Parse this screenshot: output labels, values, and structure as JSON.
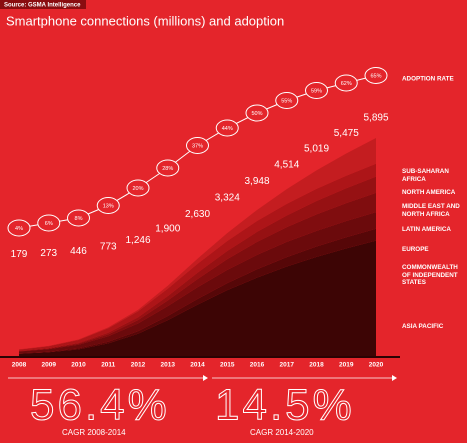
{
  "source": "Source: GSMA Intelligence",
  "chart_data": {
    "type": "stacked-area",
    "title": "Smartphone connections (millions) and adoption",
    "categories": [
      "2008",
      "2009",
      "2010",
      "2011",
      "2012",
      "2013",
      "2014",
      "2015",
      "2016",
      "2017",
      "2018",
      "2019",
      "2020"
    ],
    "totals": {
      "values": [
        179,
        273,
        446,
        773,
        1246,
        1900,
        2630,
        3324,
        3948,
        4514,
        5019,
        5475,
        5895
      ],
      "value_labels": [
        "179",
        "273",
        "446",
        "773",
        "1,246",
        "1,900",
        "2,630",
        "3,324",
        "3,948",
        "4,514",
        "5,019",
        "5,475",
        "5,895"
      ]
    },
    "adoption": {
      "name": "ADOPTION RATE",
      "values": [
        4,
        6,
        8,
        13,
        20,
        28,
        37,
        44,
        50,
        55,
        59,
        62,
        65
      ],
      "value_labels": [
        "4%",
        "6%",
        "8%",
        "13%",
        "20%",
        "28%",
        "37%",
        "44%",
        "50%",
        "55%",
        "59%",
        "62%",
        "65%"
      ]
    },
    "series": [
      {
        "name": "SUB-SAHARAN AFRICA",
        "color": "#c41d20",
        "values": [
          5,
          10,
          14,
          23,
          40,
          80,
          140,
          214,
          298,
          399,
          499,
          600,
          695
        ]
      },
      {
        "name": "NORTH AMERICA",
        "color": "#ad1518",
        "values": [
          35,
          50,
          80,
          120,
          160,
          200,
          240,
          270,
          295,
          315,
          330,
          340,
          350
        ]
      },
      {
        "name": "MIDDLE EAST AND NORTH AFRICA",
        "color": "#961113",
        "values": [
          9,
          13,
          22,
          45,
          76,
          120,
          170,
          220,
          270,
          315,
          360,
          400,
          440
        ]
      },
      {
        "name": "LATIN AMERICA",
        "color": "#800d0f",
        "values": [
          10,
          15,
          25,
          50,
          90,
          150,
          220,
          290,
          350,
          400,
          445,
          485,
          520
        ]
      },
      {
        "name": "EUROPE",
        "color": "#6b0a0c",
        "values": [
          50,
          70,
          100,
          150,
          210,
          270,
          320,
          360,
          390,
          410,
          425,
          440,
          450
        ]
      },
      {
        "name": "COMMONWEALTH OF INDEPENDENT STATES",
        "color": "#560708",
        "values": [
          10,
          15,
          25,
          45,
          70,
          110,
          150,
          190,
          225,
          255,
          280,
          300,
          320
        ]
      },
      {
        "name": "ASIA PACIFIC",
        "color": "#3d0505",
        "values": [
          60,
          100,
          180,
          340,
          600,
          970,
          1390,
          1780,
          2120,
          2420,
          2680,
          2910,
          3120
        ]
      }
    ],
    "cagr": [
      {
        "value": "56.4%",
        "label": "CAGR 2008-2014"
      },
      {
        "value": "14.5%",
        "label": "CAGR 2014-2020"
      }
    ]
  }
}
